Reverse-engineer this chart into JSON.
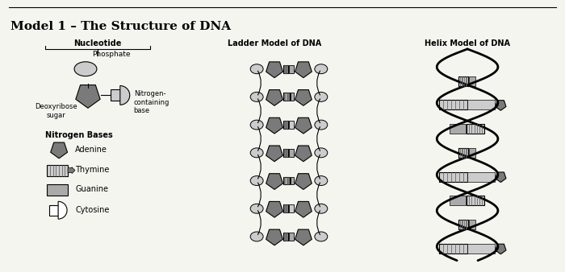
{
  "title": "Model 1 – The Structure of DNA",
  "ladder_label": "Ladder Model of DNA",
  "helix_label": "Helix Model of DNA",
  "nucleotide_label": "Nucleotide",
  "phosphate_label": "Phosphate",
  "deoxyribose_label": "Deoxyribose\nsugar",
  "nitrogen_label": "Nitrogen-\ncontaining\nbase",
  "nitrogen_bases_label": "Nitrogen Bases",
  "legend_items": [
    "Adenine",
    "Thymine",
    "Guanine",
    "Cytosine"
  ],
  "bg_color": "#f5f5f0",
  "dark_gray": "#7a7a7a",
  "mid_gray": "#aaaaaa",
  "light_gray": "#cccccc",
  "white": "#ffffff",
  "black": "#000000",
  "stripe_color": "#555555"
}
